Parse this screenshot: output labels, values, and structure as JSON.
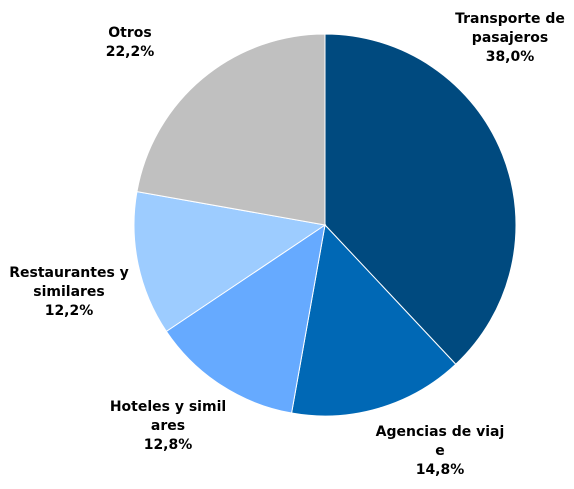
{
  "chart_data": {
    "type": "pie",
    "categories": [
      "Transporte de pasajeros",
      "Agencias de viaje",
      "Hoteles y similares",
      "Restaurantes y similares",
      "Otros"
    ],
    "values": [
      38.0,
      14.8,
      12.8,
      12.2,
      22.2
    ],
    "value_labels": [
      "38,0%",
      "14,8%",
      "12,8%",
      "12,2%",
      "22,2%"
    ],
    "colors": [
      "#004a7f",
      "#0068b5",
      "#66aaff",
      "#9dccff",
      "#c0c0c0"
    ]
  }
}
